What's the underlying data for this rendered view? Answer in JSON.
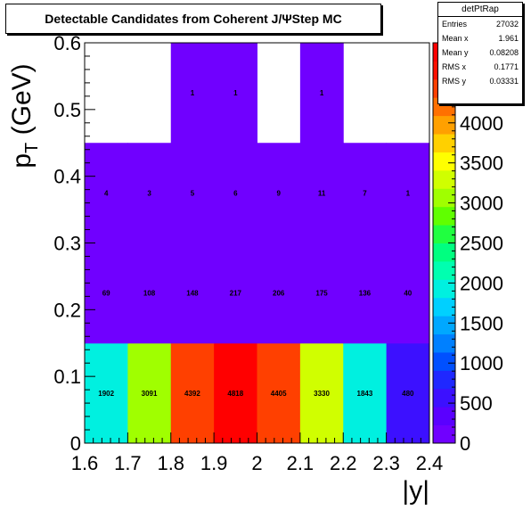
{
  "title": "Detectable Candidates from Coherent J/ΨStep MC",
  "stats": {
    "name": "detPtRap",
    "rows": [
      {
        "label": "Entries",
        "value": "27032"
      },
      {
        "label": "Mean x",
        "value": "1.961"
      },
      {
        "label": "Mean y",
        "value": "0.08208"
      },
      {
        "label": "RMS x",
        "value": "0.1771"
      },
      {
        "label": "RMS y",
        "value": "0.03331"
      }
    ]
  },
  "chart_data": {
    "type": "heatmap",
    "xlabel": "|y|",
    "ylabel": "p_T (GeV)",
    "xlim": [
      1.6,
      2.4
    ],
    "ylim": [
      0,
      0.6
    ],
    "x_bin_edges": [
      1.6,
      1.7,
      1.8,
      1.9,
      2.0,
      2.1,
      2.2,
      2.3,
      2.4
    ],
    "y_bin_edges": [
      0,
      0.15,
      0.3,
      0.45,
      0.6
    ],
    "cells": [
      [
        1902,
        3091,
        4392,
        4818,
        4405,
        3330,
        1843,
        480
      ],
      [
        69,
        108,
        148,
        217,
        206,
        175,
        136,
        40
      ],
      [
        4,
        3,
        5,
        6,
        9,
        11,
        7,
        1
      ],
      [
        0,
        0,
        1,
        1,
        0,
        1,
        0,
        0
      ]
    ],
    "x_ticks": [
      "1.6",
      "1.7",
      "1.8",
      "1.9",
      "2",
      "2.1",
      "2.2",
      "2.3",
      "2.4"
    ],
    "y_ticks": [
      "0",
      "0.1",
      "0.2",
      "0.3",
      "0.4",
      "0.5",
      "0.6"
    ],
    "zlim": [
      0,
      5000
    ],
    "z_ticks": [
      "0",
      "500",
      "1000",
      "1500",
      "2000",
      "2500",
      "3000",
      "3500",
      "4000"
    ],
    "palette": [
      "#7000ff",
      "#5a00ff",
      "#3c10ff",
      "#1f28ff",
      "#0050ff",
      "#0080ff",
      "#00a8ff",
      "#00d0ff",
      "#00f0e0",
      "#00ffb0",
      "#00ff80",
      "#20ff40",
      "#60ff00",
      "#a0ff00",
      "#d0ff00",
      "#ffff00",
      "#ffd000",
      "#ffa000",
      "#ff7000",
      "#ff4000",
      "#ff1000",
      "#ff0000"
    ]
  }
}
